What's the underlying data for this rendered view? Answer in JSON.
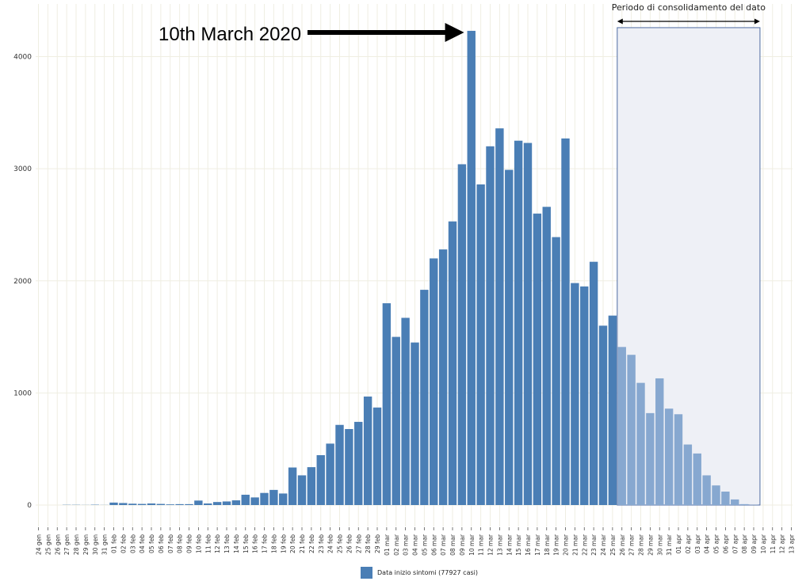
{
  "chart_data": {
    "type": "bar",
    "categories": [
      "24 gen",
      "25 gen",
      "26 gen",
      "27 gen",
      "28 gen",
      "29 gen",
      "30 gen",
      "31 gen",
      "01 feb",
      "02 feb",
      "03 feb",
      "04 feb",
      "05 feb",
      "06 feb",
      "07 feb",
      "08 feb",
      "09 feb",
      "10 feb",
      "11 feb",
      "12 feb",
      "13 feb",
      "14 feb",
      "15 feb",
      "16 feb",
      "17 feb",
      "18 feb",
      "19 feb",
      "20 feb",
      "21 feb",
      "22 feb",
      "23 feb",
      "24 feb",
      "25 feb",
      "26 feb",
      "27 feb",
      "28 feb",
      "29 feb",
      "01 mar",
      "02 mar",
      "03 mar",
      "04 mar",
      "05 mar",
      "06 mar",
      "07 mar",
      "08 mar",
      "09 mar",
      "10 mar",
      "11 mar",
      "12 mar",
      "13 mar",
      "14 mar",
      "15 mar",
      "16 mar",
      "17 mar",
      "18 mar",
      "19 mar",
      "20 mar",
      "21 mar",
      "22 mar",
      "23 mar",
      "24 mar",
      "25 mar",
      "26 mar",
      "27 mar",
      "28 mar",
      "29 mar",
      "30 mar",
      "31 mar",
      "01 apr",
      "02 apr",
      "03 apr",
      "04 apr",
      "05 apr",
      "06 apr",
      "07 apr",
      "08 apr",
      "09 apr",
      "10 apr",
      "11 apr",
      "12 apr",
      "13 apr"
    ],
    "series": [
      {
        "name": "Data inizio sintomi (77927 casi)",
        "values": [
          0,
          0,
          0,
          2,
          2,
          1,
          3,
          1,
          22,
          18,
          12,
          10,
          14,
          10,
          6,
          8,
          8,
          40,
          14,
          27,
          32,
          42,
          92,
          68,
          108,
          135,
          103,
          335,
          265,
          338,
          445,
          548,
          715,
          678,
          742,
          968,
          870,
          1800,
          1500,
          1670,
          1450,
          1920,
          2200,
          2280,
          2530,
          3040,
          4230,
          2860,
          3200,
          3360,
          2990,
          3250,
          3230,
          2600,
          2660,
          2390,
          3270,
          1980,
          1950,
          2170,
          1600,
          1690,
          1410,
          1340,
          1090,
          820,
          1130,
          860,
          810,
          540,
          460,
          265,
          175,
          120,
          50,
          8,
          2,
          0,
          0,
          0,
          0
        ]
      }
    ],
    "consolidation_start_index": 62,
    "ylim": [
      -170,
      4550
    ],
    "yticks": [
      0,
      1000,
      2000,
      3000,
      4000
    ],
    "title": "",
    "xlabel": "",
    "ylabel": "",
    "grid": true,
    "legend_position": "bottom",
    "colors": {
      "bar": "#4a7eb5",
      "bar_consolidating": "#87a8d0",
      "region_fill": "#eef0f6",
      "region_stroke": "#4d6aa0",
      "grid": "#efeee2"
    }
  },
  "annotations": {
    "peak_label": "10th March 2020",
    "consolidation_label": "Periodo di consolidamento del dato"
  },
  "legend": {
    "label": "Data inizio  sintomi  (77927 casi)"
  }
}
